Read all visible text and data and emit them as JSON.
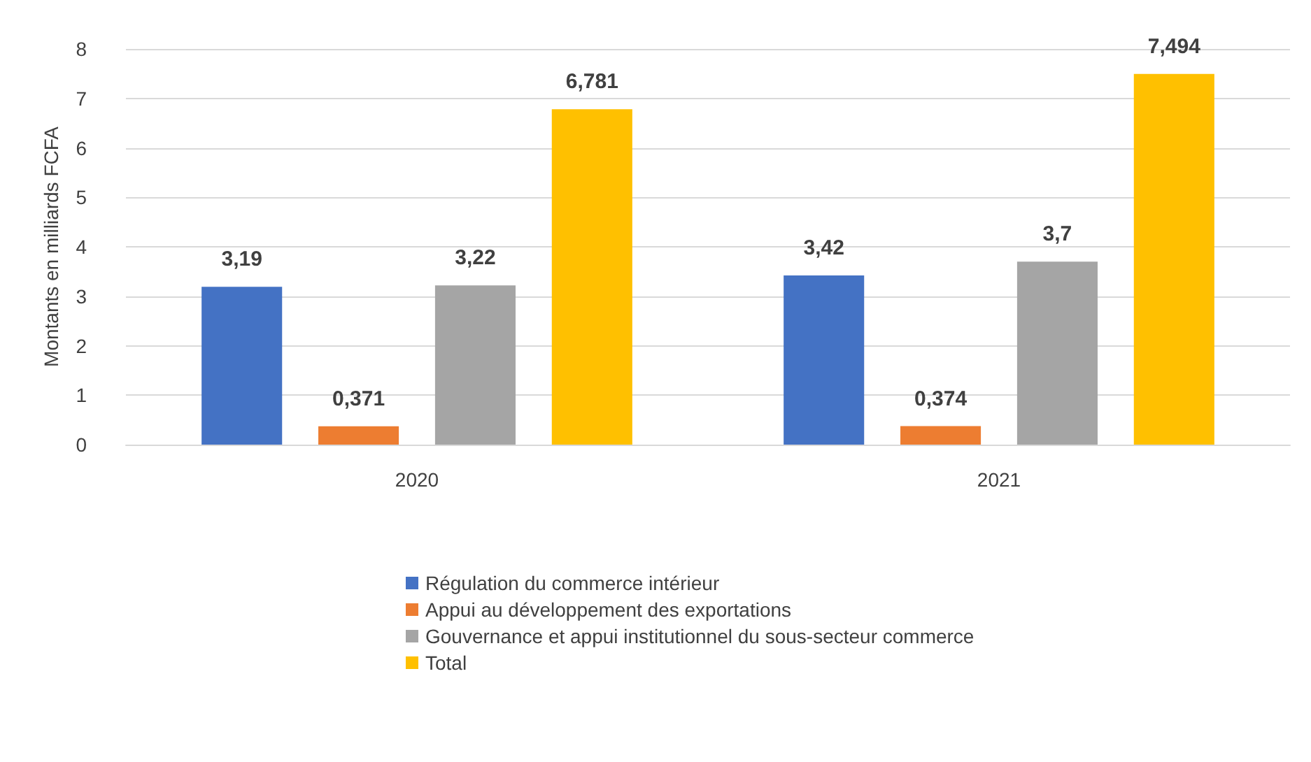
{
  "chart_data": {
    "type": "bar",
    "ylabel": "Montants en milliards FCFA",
    "categories": [
      "2020",
      "2021"
    ],
    "series": [
      {
        "name": "Régulation du commerce intérieur",
        "color": "#4472c4",
        "values": [
          3.19,
          3.42
        ],
        "value_labels": [
          "3,19",
          "3,42"
        ]
      },
      {
        "name": "Appui au développement des exportations",
        "color": "#ed7d31",
        "values": [
          0.371,
          0.374
        ],
        "value_labels": [
          "0,371",
          "0,374"
        ]
      },
      {
        "name": "Gouvernance et appui institutionnel du sous-secteur commerce",
        "color": "#a5a5a5",
        "values": [
          3.22,
          3.7
        ],
        "value_labels": [
          "3,22",
          "3,7"
        ]
      },
      {
        "name": "Total",
        "color": "#ffc000",
        "values": [
          6.781,
          7.494
        ],
        "value_labels": [
          "6,781",
          "7,494"
        ]
      }
    ],
    "ylim": [
      0,
      8
    ],
    "yticks": [
      0,
      1,
      2,
      3,
      4,
      5,
      6,
      7,
      8
    ],
    "grid": "y",
    "legend": "bottom"
  }
}
